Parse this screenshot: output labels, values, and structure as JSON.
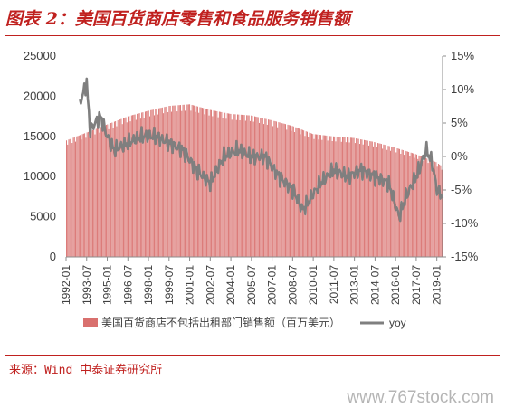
{
  "title": "图表 2：美国百货商店零售和食品服务销售额",
  "source": "来源：Wind  中泰证券研究所",
  "watermark": "www.767stock.com",
  "chart_data": {
    "type": "bar",
    "title": "",
    "xlabel": "",
    "ylabel": "",
    "ylim": [
      0,
      25000
    ],
    "y2lim": [
      -15,
      15
    ],
    "grid": false,
    "legend_placement": "bottom",
    "colors": {
      "bar": "#d9706e",
      "line": "#7f7f7f",
      "axis": "#8c8c8c",
      "text": "#404040"
    },
    "y_ticks": [
      "0",
      "5000",
      "10000",
      "15000",
      "20000",
      "25000"
    ],
    "y2_ticks": [
      "-15%",
      "-10%",
      "-5%",
      "0%",
      "5%",
      "10%",
      "15%"
    ],
    "x_tick_labels": [
      "1992-01",
      "1993-07",
      "1995-01",
      "1996-07",
      "1998-01",
      "1999-07",
      "2001-01",
      "2002-07",
      "2004-01",
      "2005-07",
      "2007-01",
      "2008-07",
      "2010-01",
      "2011-07",
      "2013-01",
      "2014-07",
      "2016-01",
      "2017-07",
      "2019-01"
    ],
    "series": [
      {
        "name": "美国百货商店不包括出租部门销售额（百万美元）",
        "type": "bar",
        "axis": "left",
        "unit": "百万美元",
        "x": [
          "1992-01",
          "1993-07",
          "1995-01",
          "1996-07",
          "1998-01",
          "1999-07",
          "2001-01",
          "2002-07",
          "2004-01",
          "2005-07",
          "2007-01",
          "2008-07",
          "2010-01",
          "2011-07",
          "2013-01",
          "2014-07",
          "2016-01",
          "2017-07",
          "2019-01",
          "2019-06"
        ],
        "values": [
          14500,
          15500,
          16500,
          17500,
          18200,
          18800,
          19000,
          18300,
          17800,
          17600,
          17000,
          16300,
          15300,
          15000,
          14800,
          14300,
          13600,
          12800,
          11800,
          11300
        ]
      },
      {
        "name": "yoy",
        "type": "line",
        "axis": "right",
        "unit": "%",
        "x": [
          "1992-01",
          "1993-01",
          "1993-07",
          "1993-10",
          "1994-07",
          "1995-01",
          "1995-07",
          "1996-07",
          "1997-07",
          "1998-07",
          "1999-07",
          "2000-07",
          "2001-07",
          "2002-07",
          "2003-07",
          "2004-07",
          "2005-07",
          "2006-07",
          "2007-07",
          "2008-07",
          "2009-04",
          "2010-07",
          "2011-07",
          "2012-07",
          "2013-07",
          "2014-07",
          "2015-07",
          "2016-04",
          "2016-10",
          "2017-07",
          "2018-04",
          "2018-09",
          "2019-01",
          "2019-06"
        ],
        "values": [
          null,
          8,
          11,
          4,
          6,
          3,
          1,
          2,
          3,
          3,
          2,
          1,
          -2,
          -4,
          0,
          1,
          0,
          0,
          -3,
          -5,
          -8,
          -4,
          -2,
          -3,
          -2,
          -3,
          -4,
          -9,
          -6,
          -3,
          1,
          -1,
          -5,
          -6
        ]
      }
    ]
  }
}
